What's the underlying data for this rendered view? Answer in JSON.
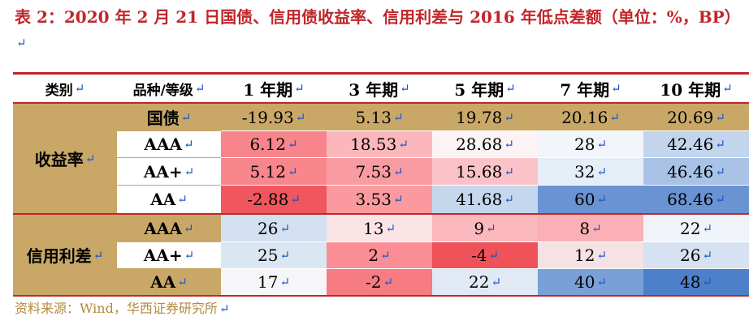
{
  "title": {
    "text": "表 2：2020 年 2 月 21 日国债、信用债收益率、信用利差与 2016 年低点差额（单位：%，BP）"
  },
  "table": {
    "headers": [
      "类别",
      "品种/等级",
      "1 年期",
      "3 年期",
      "5 年期",
      "7 年期",
      "10 年期"
    ],
    "groups": [
      {
        "category": "收益率",
        "rows": [
          {
            "grade": "国债",
            "values": [
              "-19.93",
              "5.13",
              "19.78",
              "20.16",
              "20.69"
            ],
            "colors": [
              "#c9a867",
              "#c9a867",
              "#c9a867",
              "#c9a867",
              "#c9a867"
            ]
          },
          {
            "grade": "AAA",
            "values": [
              "6.12",
              "18.53",
              "28.68",
              "28",
              "42.46"
            ],
            "colors": [
              "#f8858c",
              "#fbb7bc",
              "#fbf3f4",
              "#f2f5fa",
              "#c2d5ec"
            ]
          },
          {
            "grade": "AA+",
            "values": [
              "5.12",
              "7.53",
              "15.68",
              "32",
              "46.46"
            ],
            "colors": [
              "#f8868d",
              "#f99ca2",
              "#fbc3c7",
              "#e5edf6",
              "#a8c3e6"
            ]
          },
          {
            "grade": "AA",
            "values": [
              "-2.88",
              "3.53",
              "41.68",
              "60",
              "68.46"
            ],
            "colors": [
              "#f0565d",
              "#fa9a9f",
              "#c5d7ec",
              "#6993d2",
              "#6993d2"
            ]
          }
        ]
      },
      {
        "category": "信用利差",
        "rows": [
          {
            "grade": "AAA",
            "values": [
              "26",
              "13",
              "9",
              "8",
              "22"
            ],
            "colors": [
              "#d2e0f1",
              "#fbe4e6",
              "#fbb8bd",
              "#fbb0b5",
              "#f0f4fa"
            ]
          },
          {
            "grade": "AA+",
            "values": [
              "25",
              "2",
              "-4",
              "12",
              "26"
            ],
            "colors": [
              "#dbe6f3",
              "#fa8e94",
              "#f0525a",
              "#f6e1e4",
              "#d6e2f2"
            ]
          },
          {
            "grade": "AA",
            "values": [
              "17",
              "-2",
              "22",
              "40",
              "48"
            ],
            "colors": [
              "#f6f5f8",
              "#f67b82",
              "#e1e9f5",
              "#7aa0d8",
              "#4e7fc9"
            ]
          }
        ]
      }
    ]
  },
  "source": "资料来源：Wind，华西证券研究所",
  "colors": {
    "accent": "#c0262a",
    "gold": "#c9a867",
    "source_text": "#b38a3a",
    "return_mark": "#1a53c8"
  }
}
